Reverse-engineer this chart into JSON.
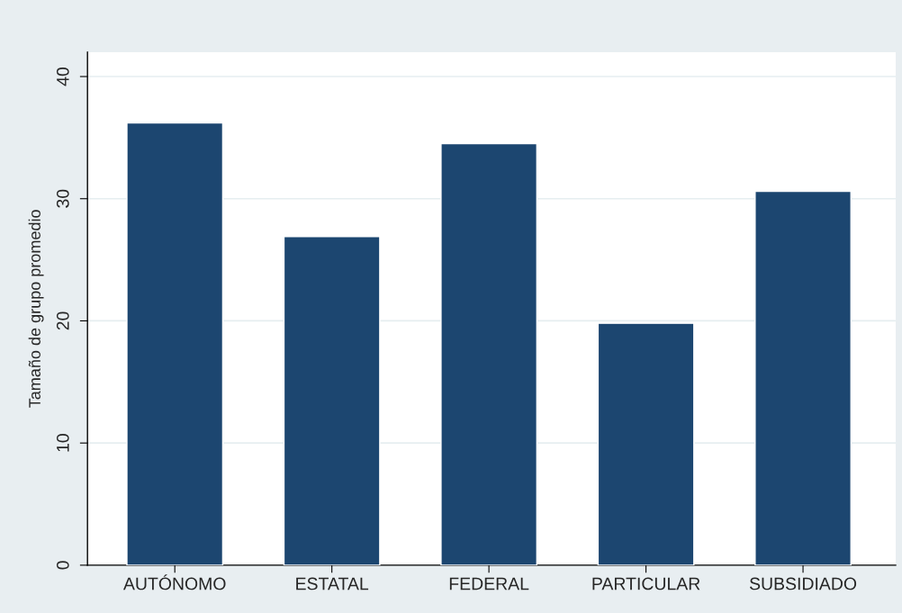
{
  "chart_data": {
    "type": "bar",
    "ylabel": "Tamaño de grupo promedio",
    "categories": [
      "AUTÓNOMO",
      "ESTATAL",
      "FEDERAL",
      "PARTICULAR",
      "SUBSIDIADO"
    ],
    "values": [
      36.2,
      26.9,
      34.5,
      19.8,
      30.6
    ],
    "color": "#1c4670",
    "ylim": [
      0,
      42
    ],
    "yticks": [
      0,
      10,
      20,
      30,
      40
    ],
    "grid": "y",
    "legend": false
  }
}
